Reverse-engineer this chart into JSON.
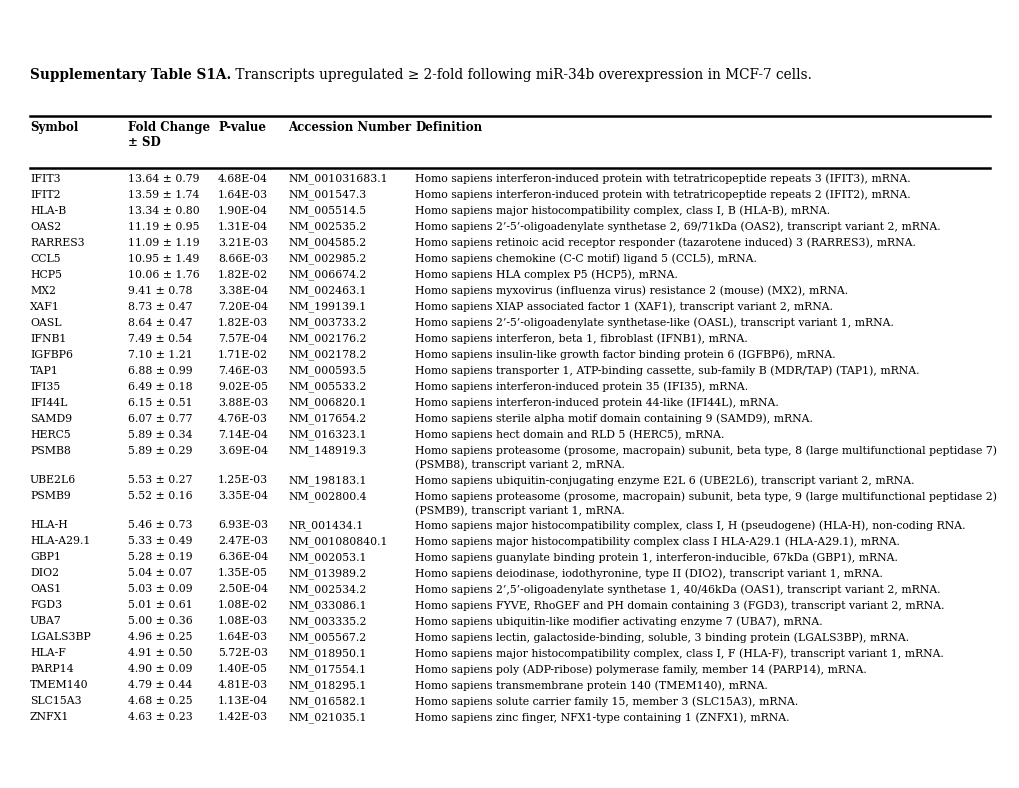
{
  "title_bold": "Supplementary Table S1A.",
  "title_normal": " Transcripts upregulated ≥ 2-fold following miR-34b overexpression in MCF-7 cells.",
  "rows": [
    [
      "IFIT3",
      "13.64 ± 0.79",
      "4.68E-04",
      "NM_001031683.1",
      "Homo sapiens interferon-induced protein with tetratricopeptide repeats 3 (IFIT3), mRNA."
    ],
    [
      "IFIT2",
      "13.59 ± 1.74",
      "1.64E-03",
      "NM_001547.3",
      "Homo sapiens interferon-induced protein with tetratricopeptide repeats 2 (IFIT2), mRNA."
    ],
    [
      "HLA-B",
      "13.34 ± 0.80",
      "1.90E-04",
      "NM_005514.5",
      "Homo sapiens major histocompatibility complex, class I, B (HLA-B), mRNA."
    ],
    [
      "OAS2",
      "11.19 ± 0.95",
      "1.31E-04",
      "NM_002535.2",
      "Homo sapiens 2’-5’-oligoadenylate synthetase 2, 69/71kDa (OAS2), transcript variant 2, mRNA."
    ],
    [
      "RARRES3",
      "11.09 ± 1.19",
      "3.21E-03",
      "NM_004585.2",
      "Homo sapiens retinoic acid receptor responder (tazarotene induced) 3 (RARRES3), mRNA."
    ],
    [
      "CCL5",
      "10.95 ± 1.49",
      "8.66E-03",
      "NM_002985.2",
      "Homo sapiens chemokine (C-C motif) ligand 5 (CCL5), mRNA."
    ],
    [
      "HCP5",
      "10.06 ± 1.76",
      "1.82E-02",
      "NM_006674.2",
      "Homo sapiens HLA complex P5 (HCP5), mRNA."
    ],
    [
      "MX2",
      "9.41 ± 0.78",
      "3.38E-04",
      "NM_002463.1",
      "Homo sapiens myxovirus (influenza virus) resistance 2 (mouse) (MX2), mRNA."
    ],
    [
      "XAF1",
      "8.73 ± 0.47",
      "7.20E-04",
      "NM_199139.1",
      "Homo sapiens XIAP associated factor 1 (XAF1), transcript variant 2, mRNA."
    ],
    [
      "OASL",
      "8.64 ± 0.47",
      "1.82E-03",
      "NM_003733.2",
      "Homo sapiens 2’-5’-oligoadenylate synthetase-like (OASL), transcript variant 1, mRNA."
    ],
    [
      "IFNB1",
      "7.49 ± 0.54",
      "7.57E-04",
      "NM_002176.2",
      "Homo sapiens interferon, beta 1, fibroblast (IFNB1), mRNA."
    ],
    [
      "IGFBP6",
      "7.10 ± 1.21",
      "1.71E-02",
      "NM_002178.2",
      "Homo sapiens insulin-like growth factor binding protein 6 (IGFBP6), mRNA."
    ],
    [
      "TAP1",
      "6.88 ± 0.99",
      "7.46E-03",
      "NM_000593.5",
      "Homo sapiens transporter 1, ATP-binding cassette, sub-family B (MDR/TAP) (TAP1), mRNA."
    ],
    [
      "IFI35",
      "6.49 ± 0.18",
      "9.02E-05",
      "NM_005533.2",
      "Homo sapiens interferon-induced protein 35 (IFI35), mRNA."
    ],
    [
      "IFI44L",
      "6.15 ± 0.51",
      "3.88E-03",
      "NM_006820.1",
      "Homo sapiens interferon-induced protein 44-like (IFI44L), mRNA."
    ],
    [
      "SAMD9",
      "6.07 ± 0.77",
      "4.76E-03",
      "NM_017654.2",
      "Homo sapiens sterile alpha motif domain containing 9 (SAMD9), mRNA."
    ],
    [
      "HERC5",
      "5.89 ± 0.34",
      "7.14E-04",
      "NM_016323.1",
      "Homo sapiens hect domain and RLD 5 (HERC5), mRNA."
    ],
    [
      "PSMB8",
      "5.89 ± 0.29",
      "3.69E-04",
      "NM_148919.3",
      "Homo sapiens proteasome (prosome, macropain) subunit, beta type, 8 (large multifunctional peptidase 7)\n(PSMB8), transcript variant 2, mRNA."
    ],
    [
      "UBE2L6",
      "5.53 ± 0.27",
      "1.25E-03",
      "NM_198183.1",
      "Homo sapiens ubiquitin-conjugating enzyme E2L 6 (UBE2L6), transcript variant 2, mRNA."
    ],
    [
      "PSMB9",
      "5.52 ± 0.16",
      "3.35E-04",
      "NM_002800.4",
      "Homo sapiens proteasome (prosome, macropain) subunit, beta type, 9 (large multifunctional peptidase 2)\n(PSMB9), transcript variant 1, mRNA."
    ],
    [
      "HLA-H",
      "5.46 ± 0.73",
      "6.93E-03",
      "NR_001434.1",
      "Homo sapiens major histocompatibility complex, class I, H (pseudogene) (HLA-H), non-coding RNA."
    ],
    [
      "HLA-A29.1",
      "5.33 ± 0.49",
      "2.47E-03",
      "NM_001080840.1",
      "Homo sapiens major histocompatibility complex class I HLA-A29.1 (HLA-A29.1), mRNA."
    ],
    [
      "GBP1",
      "5.28 ± 0.19",
      "6.36E-04",
      "NM_002053.1",
      "Homo sapiens guanylate binding protein 1, interferon-inducible, 67kDa (GBP1), mRNA."
    ],
    [
      "DIO2",
      "5.04 ± 0.07",
      "1.35E-05",
      "NM_013989.2",
      "Homo sapiens deiodinase, iodothyronine, type II (DIO2), transcript variant 1, mRNA."
    ],
    [
      "OAS1",
      "5.03 ± 0.09",
      "2.50E-04",
      "NM_002534.2",
      "Homo sapiens 2’,5’-oligoadenylate synthetase 1, 40/46kDa (OAS1), transcript variant 2, mRNA."
    ],
    [
      "FGD3",
      "5.01 ± 0.61",
      "1.08E-02",
      "NM_033086.1",
      "Homo sapiens FYVE, RhoGEF and PH domain containing 3 (FGD3), transcript variant 2, mRNA."
    ],
    [
      "UBA7",
      "5.00 ± 0.36",
      "1.08E-03",
      "NM_003335.2",
      "Homo sapiens ubiquitin-like modifier activating enzyme 7 (UBA7), mRNA."
    ],
    [
      "LGALS3BP",
      "4.96 ± 0.25",
      "1.64E-03",
      "NM_005567.2",
      "Homo sapiens lectin, galactoside-binding, soluble, 3 binding protein (LGALS3BP), mRNA."
    ],
    [
      "HLA-F",
      "4.91 ± 0.50",
      "5.72E-03",
      "NM_018950.1",
      "Homo sapiens major histocompatibility complex, class I, F (HLA-F), transcript variant 1, mRNA."
    ],
    [
      "PARP14",
      "4.90 ± 0.09",
      "1.40E-05",
      "NM_017554.1",
      "Homo sapiens poly (ADP-ribose) polymerase family, member 14 (PARP14), mRNA."
    ],
    [
      "TMEM140",
      "4.79 ± 0.44",
      "4.81E-03",
      "NM_018295.1",
      "Homo sapiens transmembrane protein 140 (TMEM140), mRNA."
    ],
    [
      "SLC15A3",
      "4.68 ± 0.25",
      "1.13E-04",
      "NM_016582.1",
      "Homo sapiens solute carrier family 15, member 3 (SLC15A3), mRNA."
    ],
    [
      "ZNFX1",
      "4.63 ± 0.23",
      "1.42E-03",
      "NM_021035.1",
      "Homo sapiens zinc finger, NFX1-type containing 1 (ZNFX1), mRNA."
    ]
  ],
  "fig_bg": "#ffffff",
  "text_color": "#1a1a1a",
  "data_fontsize": 7.8,
  "title_fontsize": 9.8,
  "header_fontsize": 8.5
}
